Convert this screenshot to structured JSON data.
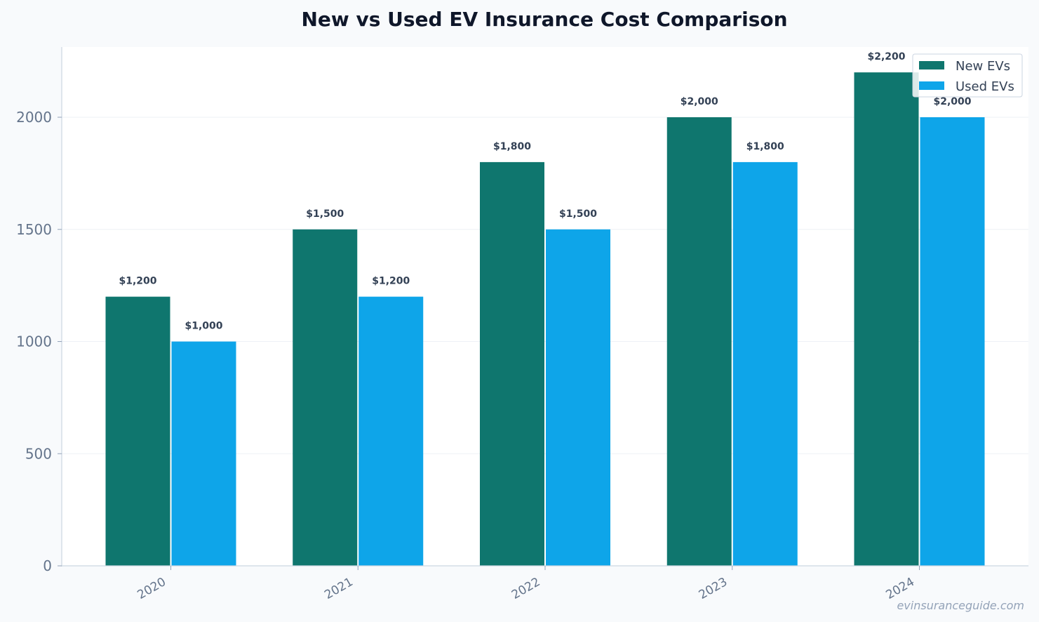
{
  "chart_data": {
    "type": "bar",
    "title": "New vs Used EV Insurance Cost Comparison",
    "xlabel": "",
    "ylabel": "",
    "categories": [
      "2020",
      "2021",
      "2022",
      "2023",
      "2024"
    ],
    "series": [
      {
        "name": "New EVs",
        "color": "#0f766e",
        "values": [
          1200,
          1500,
          1800,
          2000,
          2200
        ],
        "labels": [
          "$1,200",
          "$1,500",
          "$1,800",
          "$2,000",
          "$2,200"
        ]
      },
      {
        "name": "Used EVs",
        "color": "#0ea5e9",
        "values": [
          1000,
          1200,
          1500,
          1800,
          2000
        ],
        "labels": [
          "$1,000",
          "$1,200",
          "$1,500",
          "$1,800",
          "$2,000"
        ]
      }
    ],
    "yticks": [
      "0",
      "500",
      "1000",
      "1500",
      "2000"
    ],
    "ylim": [
      0,
      2313
    ],
    "grid": true,
    "legend_position": "top-right"
  },
  "watermark": "evinsuranceguide.com",
  "colors": {
    "background": "#f8fafc",
    "plot_background": "#ffffff",
    "grid": "#e2e8f0",
    "axis": "#cbd5e1"
  }
}
